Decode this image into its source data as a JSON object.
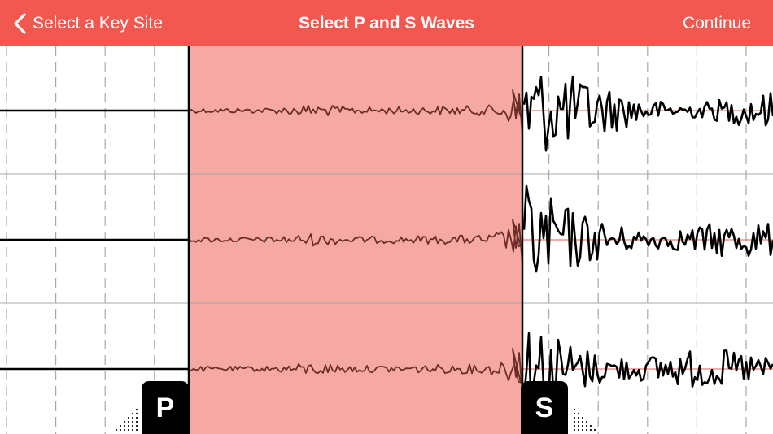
{
  "navbar": {
    "back_label": "Select a Key Site",
    "title": "Select P and S Waves",
    "continue_label": "Continue",
    "background_color": "#f2584f"
  },
  "icons": {
    "back": "chevron-left-icon"
  },
  "seismogram": {
    "channel_count": 3,
    "selection_color": "#f6a8a2",
    "in_selection_trace_color": "#6b2d28",
    "trace_color": "#000000",
    "baseline_color_in_selection": "#b3372f",
    "baseline_color_after": "#e85a4f",
    "grid_line_color": "#a8a8a8"
  },
  "markers": {
    "p": {
      "label": "P"
    },
    "s": {
      "label": "S"
    }
  }
}
